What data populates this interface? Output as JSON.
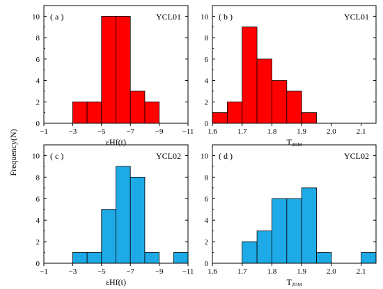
{
  "figure": {
    "shared_ylabel": "Frequency(N)"
  },
  "colors": {
    "red_bars": "#ff0000",
    "blue_bars": "#1eaae6",
    "axes": "#000000"
  },
  "chart_data": [
    {
      "type": "bar",
      "panel_label": "( a )",
      "sample": "YCL01",
      "xlabel": "εHf(t)",
      "xlabel_sub": "",
      "xlim": [
        -1,
        -11
      ],
      "xticks": [
        -1,
        -3,
        -5,
        -7,
        -9,
        -11
      ],
      "xtick_labels": [
        "−1",
        "−3",
        "−5",
        "−7",
        "−9",
        "−11"
      ],
      "ylim": [
        0,
        11
      ],
      "yticks": [
        0,
        2,
        4,
        6,
        8,
        10
      ],
      "bins": [
        [
          -3,
          -4
        ],
        [
          -4,
          -5
        ],
        [
          -5,
          -6
        ],
        [
          -6,
          -7
        ],
        [
          -7,
          -8
        ],
        [
          -8,
          -9
        ]
      ],
      "values": [
        2,
        2,
        10,
        10,
        3,
        2
      ],
      "color": "red"
    },
    {
      "type": "bar",
      "panel_label": "( b )",
      "sample": "YCL01",
      "xlabel": "T",
      "xlabel_sub": "2DM",
      "xlim": [
        1.6,
        2.15
      ],
      "xticks": [
        1.6,
        1.7,
        1.8,
        1.9,
        2.0,
        2.1
      ],
      "xtick_labels": [
        "1.6",
        "1.7",
        "1.8",
        "1.9",
        "2.0",
        "2.1"
      ],
      "ylim": [
        0,
        11
      ],
      "yticks": [
        0,
        2,
        4,
        6,
        8,
        10
      ],
      "bins": [
        [
          1.6,
          1.65
        ],
        [
          1.65,
          1.7
        ],
        [
          1.7,
          1.75
        ],
        [
          1.75,
          1.8
        ],
        [
          1.8,
          1.85
        ],
        [
          1.85,
          1.9
        ],
        [
          1.9,
          1.95
        ]
      ],
      "values": [
        1,
        2,
        9,
        6,
        4,
        3,
        1
      ],
      "color": "red"
    },
    {
      "type": "bar",
      "panel_label": "( c )",
      "sample": "YCL02",
      "xlabel": "εHf(t)",
      "xlabel_sub": "",
      "xlim": [
        -1,
        -11
      ],
      "xticks": [
        -1,
        -3,
        -5,
        -7,
        -9,
        -11
      ],
      "xtick_labels": [
        "−1",
        "−3",
        "−5",
        "−7",
        "−9",
        "−11"
      ],
      "ylim": [
        0,
        11
      ],
      "yticks": [
        0,
        2,
        4,
        6,
        8,
        10
      ],
      "bins": [
        [
          -3,
          -4
        ],
        [
          -4,
          -5
        ],
        [
          -5,
          -6
        ],
        [
          -6,
          -7
        ],
        [
          -7,
          -8
        ],
        [
          -8,
          -9
        ],
        [
          -10,
          -11
        ]
      ],
      "values": [
        1,
        1,
        5,
        9,
        8,
        1,
        1
      ],
      "color": "blue"
    },
    {
      "type": "bar",
      "panel_label": "( d )",
      "sample": "YCL02",
      "xlabel": "T",
      "xlabel_sub": "2DM",
      "xlim": [
        1.6,
        2.15
      ],
      "xticks": [
        1.6,
        1.7,
        1.8,
        1.9,
        2.0,
        2.1
      ],
      "xtick_labels": [
        "1.6",
        "1.7",
        "1.8",
        "1.9",
        "2.0",
        "2.1"
      ],
      "ylim": [
        0,
        11
      ],
      "yticks": [
        0,
        2,
        4,
        6,
        8,
        10
      ],
      "bins": [
        [
          1.7,
          1.75
        ],
        [
          1.75,
          1.8
        ],
        [
          1.8,
          1.85
        ],
        [
          1.85,
          1.9
        ],
        [
          1.9,
          1.95
        ],
        [
          1.95,
          2.0
        ],
        [
          2.1,
          2.15
        ]
      ],
      "values": [
        2,
        3,
        6,
        6,
        7,
        1,
        1
      ],
      "color": "blue"
    }
  ]
}
